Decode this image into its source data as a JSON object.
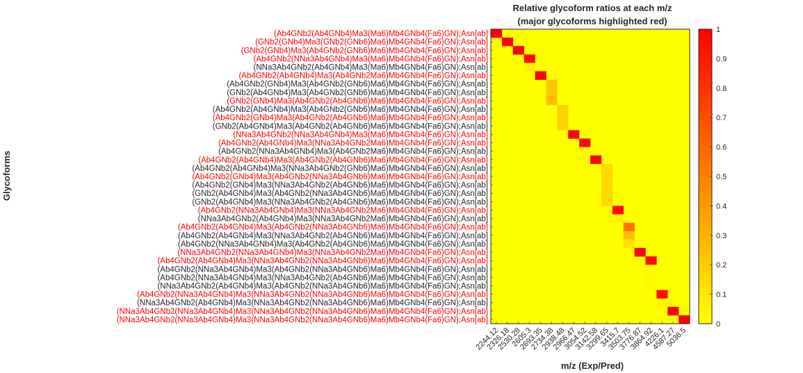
{
  "chart_data": {
    "type": "heatmap",
    "title": "Relative glycoform ratios at each m/z",
    "subtitle": "(major glycoforms highlighted red)",
    "xlabel": "m/z (Exp/Pred)",
    "ylabel": "Glycoforms",
    "x_categories": [
      "2244.12",
      "2326.18",
      "2530.28",
      "2605.3",
      "2693.35",
      "2734.38",
      "2938.48",
      "2966.47",
      "3054.52",
      "3142.58",
      "3299.65",
      "3415.7",
      "3503.75",
      "3776.87",
      "3864.92",
      "4226.1",
      "4587.27",
      "5036.5"
    ],
    "y_categories": [
      "(Ab4GNb2(Ab4GNb4)Ma3(Ma6)Mb4GNb4(Fa6)GN);Asn[ab]",
      "(GNb2(GNb4)Ma3(GNb2(GNb6)Ma6)Mb4GNb4(Fa6)GN);Asn[ab]",
      "(GNb2(GNb4)Ma3(Ab4GNb2(GNb6)Ma6)Mb4GNb4(Fa6)GN);Asn[ab]",
      "(Ab4GNb2(NNa3Ab4GNb4)Ma3(Ma6)Mb4GNb4(Fa6)GN);Asn[ab]",
      "(NNa3Ab4GNb2(Ab4GNb4)Ma3(Ma6)Mb4GNb4(Fa6)GN);Asn[ab]",
      "(Ab4GNb2(Ab4GNb4)Ma3(Ab4GNb2Ma6)Mb4GNb4(Fa6)GN);Asn[ab]",
      "(Ab4GNb2(GNb4)Ma3(Ab4GNb2(GNb6)Ma6)Mb4GNb4(Fa6)GN);Asn[ab]",
      "(GNb2(Ab4GNb4)Ma3(Ab4GNb2(GNb6)Ma6)Mb4GNb4(Fa6)GN);Asn[ab]",
      "(GNb2(GNb4)Ma3(Ab4GNb2(Ab4GNb6)Ma6)Mb4GNb4(Fa6)GN);Asn[ab]",
      "(Ab4GNb2(Ab4GNb4)Ma3(Ab4GNb2(GNb6)Ma6)Mb4GNb4(Fa6)GN);Asn[ab]",
      "(Ab4GNb2(GNb4)Ma3(Ab4GNb2(Ab4GNb6)Ma6)Mb4GNb4(Fa6)GN);Asn[ab]",
      "(GNb2(Ab4GNb4)Ma3(Ab4GNb2(Ab4GNb6)Ma6)Mb4GNb4(Fa6)GN);Asn[ab]",
      "(NNa3Ab4GNb2(NNa3Ab4GNb4)Ma3(Ma6)Mb4GNb4(Fa6)GN);Asn[ab]",
      "(Ab4GNb2(Ab4GNb4)Ma3(NNa3Ab4GNb2Ma6)Mb4GNb4(Fa6)GN);Asn[ab]",
      "(Ab4GNb2(NNa3Ab4GNb4)Ma3(Ab4GNb2Ma6)Mb4GNb4(Fa6)GN);Asn[ab]",
      "(Ab4GNb2(Ab4GNb4)Ma3(Ab4GNb2(Ab4GNb6)Ma6)Mb4GNb4(Fa6)GN);Asn[ab]",
      "(Ab4GNb2(Ab4GNb4)Ma3(NNa3Ab4GNb2(GNb6)Ma6)Mb4GNb4(Fa6)GN);Asn[ab]",
      "(Ab4GNb2(GNb4)Ma3(Ab4GNb2(NNa3Ab4GNb6)Ma6)Mb4GNb4(Fa6)GN);Asn[ab]",
      "(Ab4GNb2(GNb4)Ma3(NNa3Ab4GNb2(Ab4GNb6)Ma6)Mb4GNb4(Fa6)GN);Asn[ab]",
      "(GNb2(Ab4GNb4)Ma3(Ab4GNb2(NNa3Ab4GNb6)Ma6)Mb4GNb4(Fa6)GN);Asn[ab]",
      "(GNb2(Ab4GNb4)Ma3(NNa3Ab4GNb2(Ab4GNb6)Ma6)Mb4GNb4(Fa6)GN);Asn[ab]",
      "(Ab4GNb2(NNa3Ab4GNb4)Ma3(NNa3Ab4GNb2Ma6)Mb4GNb4(Fa6)GN);Asn[ab]",
      "(NNa3Ab4GNb2(Ab4GNb4)Ma3(NNa3Ab4GNb2Ma6)Mb4GNb4(Fa6)GN);Asn[ab]",
      "(Ab4GNb2(Ab4GNb4)Ma3(Ab4GNb2(NNa3Ab4GNb6)Ma6)Mb4GNb4(Fa6)GN);Asn[ab]",
      "(Ab4GNb2(Ab4GNb4)Ma3(NNa3Ab4GNb2(Ab4GNb6)Ma6)Mb4GNb4(Fa6)GN);Asn[ab]",
      "(Ab4GNb2(NNa3Ab4GNb4)Ma3(Ab4GNb2(Ab4GNb6)Ma6)Mb4GNb4(Fa6)GN);Asn[ab]",
      "(NNa3Ab4GNb2(NNa3Ab4GNb4)Ma3(NNa3Ab4GNb2Ma6)Mb4GNb4(Fa6)GN);Asn[ab]",
      "(Ab4GNb2(Ab4GNb4)Ma3(NNa3Ab4GNb2(NNa3Ab4GNb6)Ma6)Mb4GNb4(Fa6)GN);Asn[ab]",
      "(Ab4GNb2(NNa3Ab4GNb4)Ma3(Ab4GNb2(NNa3Ab4GNb6)Ma6)Mb4GNb4(Fa6)GN);Asn[ab]",
      "(Ab4GNb2(NNa3Ab4GNb4)Ma3(NNa3Ab4GNb2(Ab4GNb6)Ma6)Mb4GNb4(Fa6)GN);Asn[ab]",
      "(NNa3Ab4GNb2(Ab4GNb4)Ma3(Ab4GNb2(NNa3Ab4GNb6)Ma6)Mb4GNb4(Fa6)GN);Asn[ab]",
      "(Ab4GNb2(NNa3Ab4GNb4)Ma3(NNa3Ab4GNb2(NNa3Ab4GNb6)Ma6)Mb4GNb4(Fa6)GN);Asn[ab]",
      "(NNa3Ab4GNb2(Ab4GNb4)Ma3(NNa3Ab4GNb2(NNa3Ab4GNb6)Ma6)Mb4GNb4(Fa6)GN);Asn[ab]",
      "(NNa3Ab4GNb2(NNa3Ab4GNb4)Ma3(NNa3Ab4GNb2(NNa3Ab4GNb6)Ma6)Mb4GNb4(Fa6)GN);Asn[ab]",
      "(NNa3Ab4GNb2(NNa3Ab4GNb4)Ma3(NNa3Ab4GNb2(NNa3Ab4GNb6)Ma6)Mb4GNb4(Fa6)GN);Asn[ab]"
    ],
    "highlighted_rows": [
      0,
      1,
      2,
      3,
      5,
      8,
      10,
      12,
      13,
      15,
      17,
      21,
      23,
      26,
      27,
      31,
      33,
      34
    ],
    "cells": [
      {
        "row": 0,
        "col": 0,
        "value": 1.0
      },
      {
        "row": 1,
        "col": 1,
        "value": 1.0
      },
      {
        "row": 2,
        "col": 2,
        "value": 1.0
      },
      {
        "row": 3,
        "col": 3,
        "value": 0.95
      },
      {
        "row": 4,
        "col": 3,
        "value": 0.05
      },
      {
        "row": 5,
        "col": 4,
        "value": 1.0
      },
      {
        "row": 6,
        "col": 5,
        "value": 0.22
      },
      {
        "row": 7,
        "col": 5,
        "value": 0.22
      },
      {
        "row": 8,
        "col": 5,
        "value": 0.26
      },
      {
        "row": 9,
        "col": 6,
        "value": 0.18
      },
      {
        "row": 10,
        "col": 6,
        "value": 0.18
      },
      {
        "row": 11,
        "col": 6,
        "value": 0.18
      },
      {
        "row": 12,
        "col": 7,
        "value": 1.0
      },
      {
        "row": 13,
        "col": 8,
        "value": 0.99
      },
      {
        "row": 14,
        "col": 8,
        "value": 0.02
      },
      {
        "row": 15,
        "col": 9,
        "value": 1.0
      },
      {
        "row": 16,
        "col": 10,
        "value": 0.15
      },
      {
        "row": 17,
        "col": 10,
        "value": 0.15
      },
      {
        "row": 18,
        "col": 10,
        "value": 0.15
      },
      {
        "row": 19,
        "col": 10,
        "value": 0.15
      },
      {
        "row": 20,
        "col": 10,
        "value": 0.15
      },
      {
        "row": 21,
        "col": 11,
        "value": 0.97
      },
      {
        "row": 22,
        "col": 11,
        "value": 0.04
      },
      {
        "row": 23,
        "col": 12,
        "value": 0.55
      },
      {
        "row": 24,
        "col": 12,
        "value": 0.25
      },
      {
        "row": 25,
        "col": 12,
        "value": 0.12
      },
      {
        "row": 26,
        "col": 13,
        "value": 1.0
      },
      {
        "row": 27,
        "col": 14,
        "value": 0.95
      },
      {
        "row": 28,
        "col": 14,
        "value": 0.02
      },
      {
        "row": 29,
        "col": 14,
        "value": 0.02
      },
      {
        "row": 30,
        "col": 14,
        "value": 0.02
      },
      {
        "row": 31,
        "col": 15,
        "value": 0.95
      },
      {
        "row": 32,
        "col": 15,
        "value": 0.04
      },
      {
        "row": 33,
        "col": 16,
        "value": 1.0
      },
      {
        "row": 34,
        "col": 17,
        "value": 1.0
      }
    ],
    "colorbar": {
      "ticks": [
        "0",
        "0.1",
        "0.2",
        "0.3",
        "0.4",
        "0.5",
        "0.6",
        "0.7",
        "0.8",
        "0.9",
        "1"
      ],
      "range": [
        0,
        1
      ],
      "colormap": "autumn-reversed",
      "low_color": "#ffff00",
      "high_color": "#ff0000"
    },
    "grid": false
  },
  "colors": {
    "highlight_text": "#ff0000",
    "normal_text": "#262626",
    "axis_line": "#262626"
  }
}
